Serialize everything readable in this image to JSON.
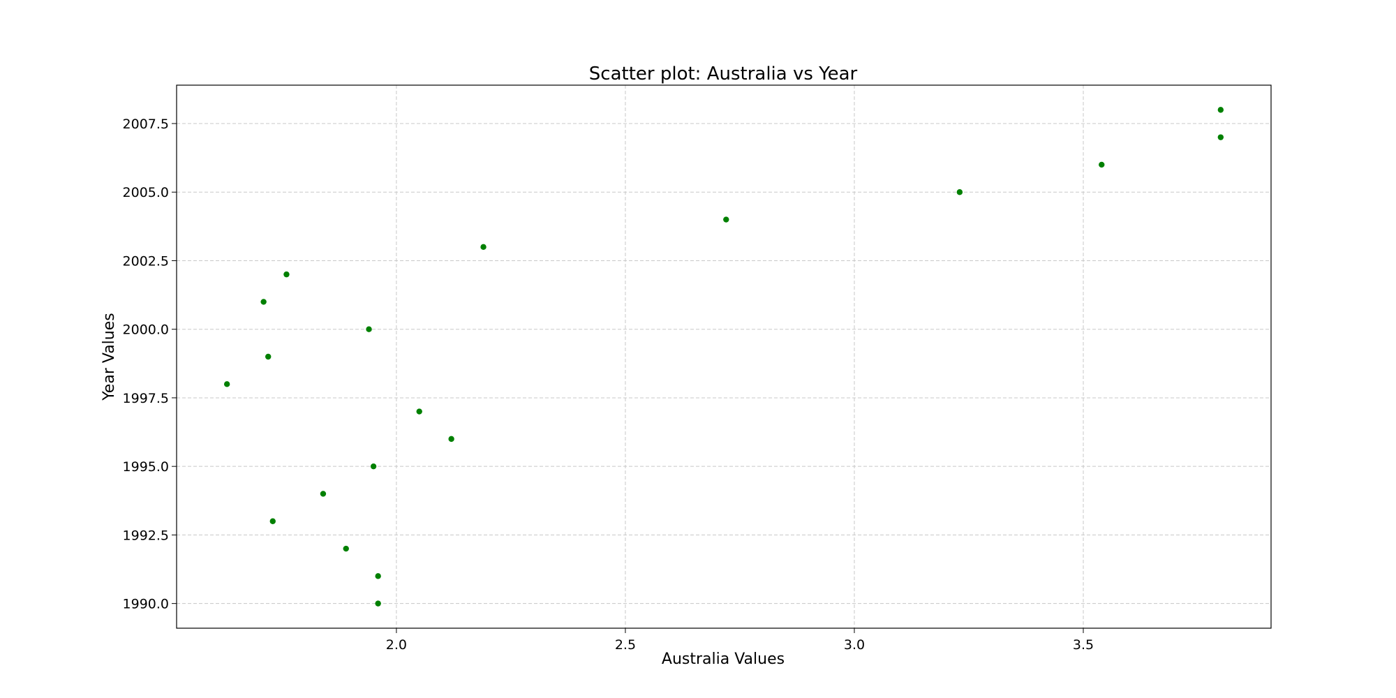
{
  "chart_data": {
    "type": "scatter",
    "title": "Scatter plot: Australia vs Year",
    "xlabel": "Australia Values",
    "ylabel": "Year Values",
    "xlim": [
      1.52,
      3.91
    ],
    "ylim": [
      1989.1,
      2008.9
    ],
    "xticks": [
      2.0,
      2.5,
      3.0,
      3.5
    ],
    "xtick_labels": [
      "2.0",
      "2.5",
      "3.0",
      "3.5"
    ],
    "yticks": [
      1990.0,
      1992.5,
      1995.0,
      1997.5,
      2000.0,
      2002.5,
      2005.0,
      2007.5
    ],
    "ytick_labels": [
      "1990.0",
      "1992.5",
      "1995.0",
      "1997.5",
      "2000.0",
      "2002.5",
      "2005.0",
      "2007.5"
    ],
    "grid": true,
    "point_color": "#008000",
    "points": [
      {
        "x": 1.96,
        "y": 1990
      },
      {
        "x": 1.96,
        "y": 1991
      },
      {
        "x": 1.89,
        "y": 1992
      },
      {
        "x": 1.73,
        "y": 1993
      },
      {
        "x": 1.84,
        "y": 1994
      },
      {
        "x": 1.95,
        "y": 1995
      },
      {
        "x": 2.12,
        "y": 1996
      },
      {
        "x": 2.05,
        "y": 1997
      },
      {
        "x": 1.63,
        "y": 1998
      },
      {
        "x": 1.72,
        "y": 1999
      },
      {
        "x": 1.94,
        "y": 2000
      },
      {
        "x": 1.71,
        "y": 2001
      },
      {
        "x": 1.76,
        "y": 2002
      },
      {
        "x": 2.19,
        "y": 2003
      },
      {
        "x": 2.72,
        "y": 2004
      },
      {
        "x": 3.23,
        "y": 2005
      },
      {
        "x": 3.54,
        "y": 2006
      },
      {
        "x": 3.8,
        "y": 2007
      },
      {
        "x": 3.8,
        "y": 2008
      }
    ]
  }
}
